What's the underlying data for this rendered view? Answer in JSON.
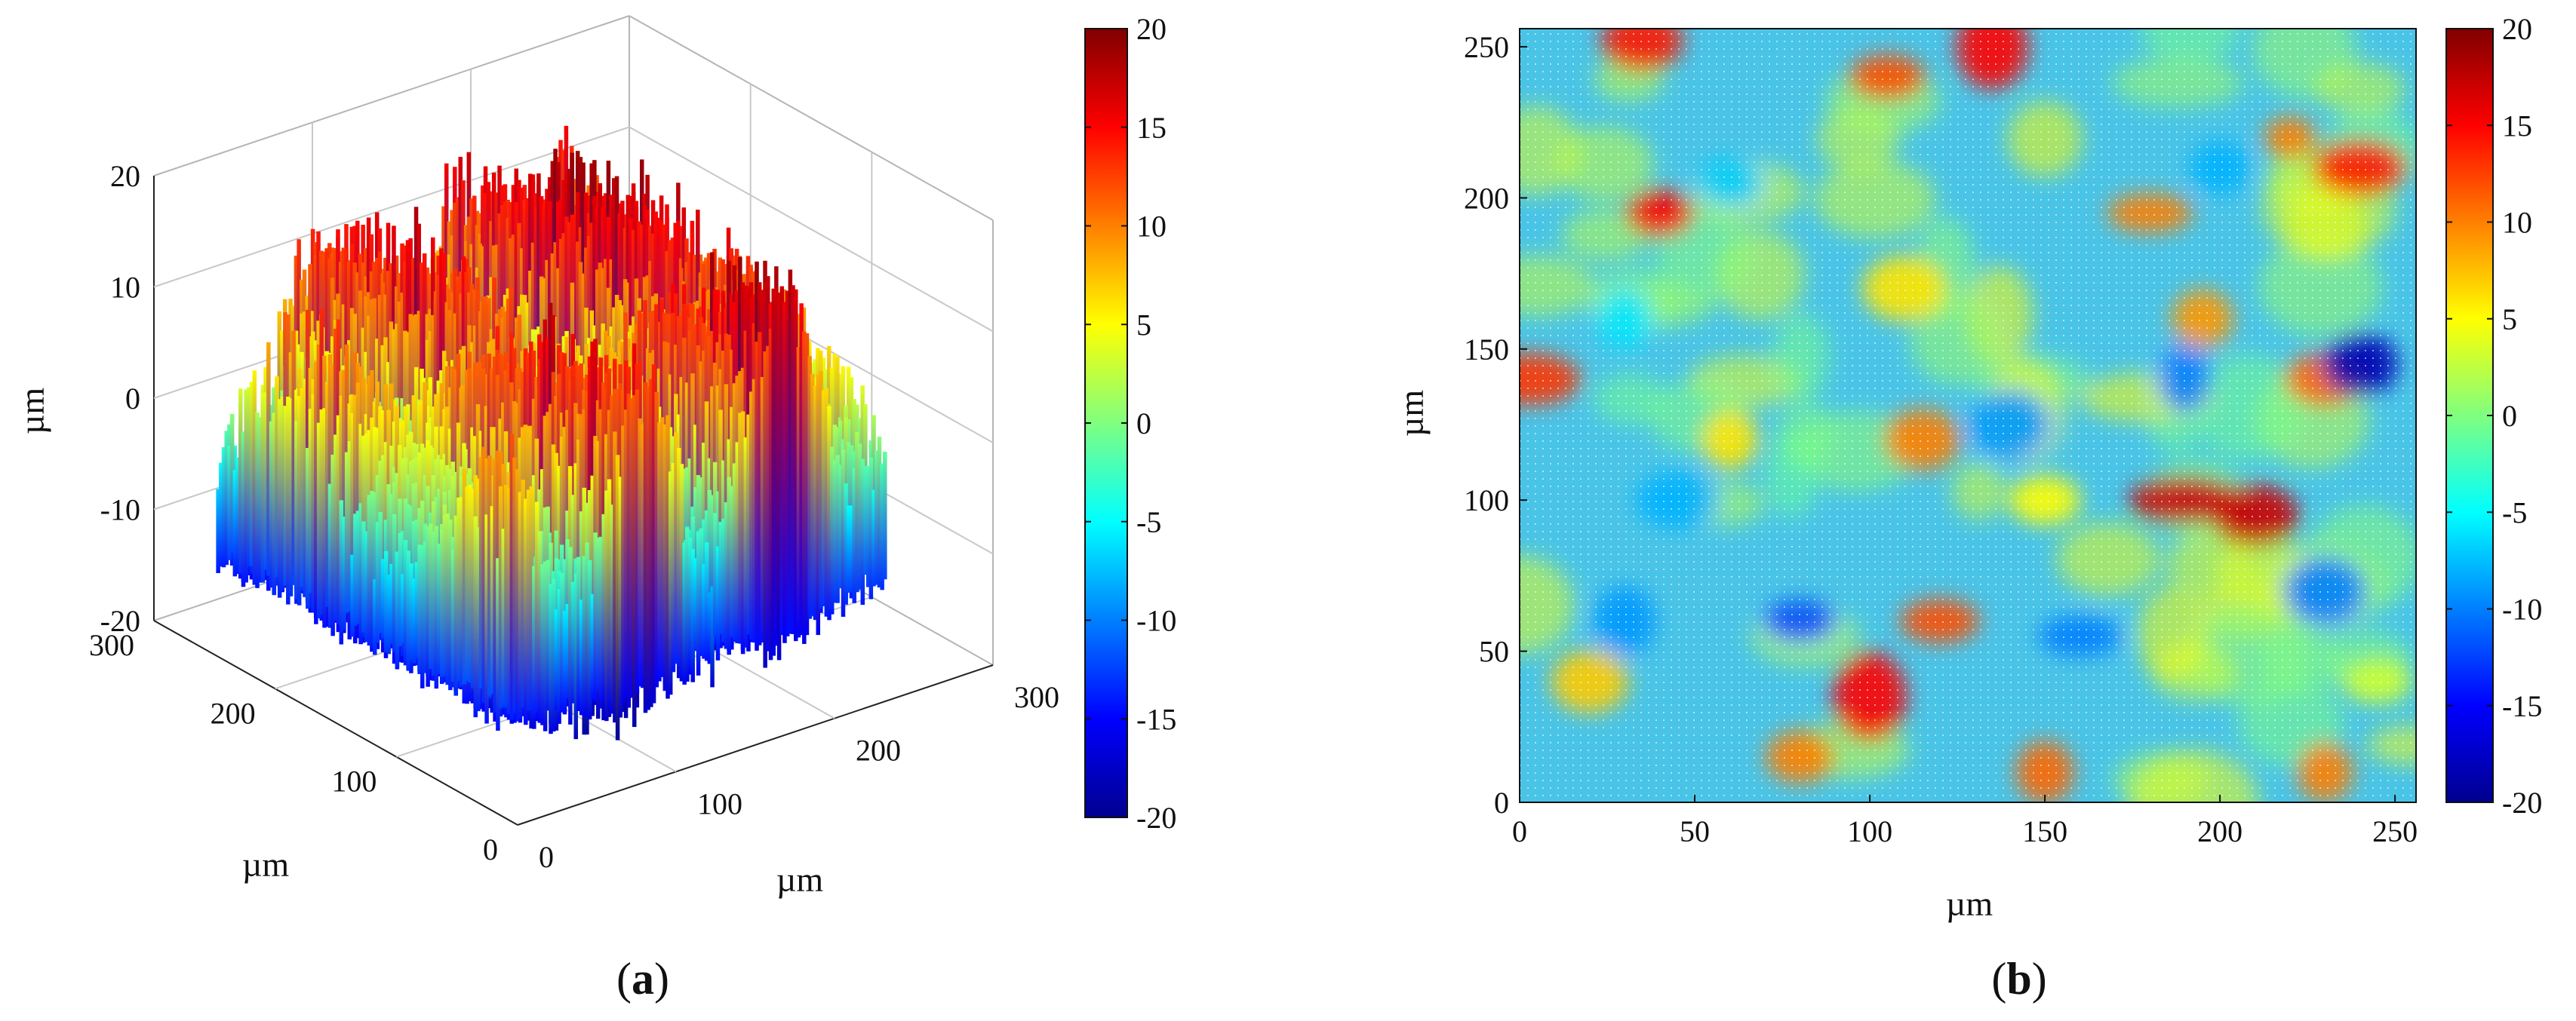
{
  "chart_data": [
    {
      "type": "surface3d",
      "panel_label": "a",
      "xlabel": "µm",
      "ylabel": "µm",
      "zlabel": "µm",
      "xlim": [
        0,
        300
      ],
      "ylim": [
        0,
        300
      ],
      "zlim": [
        -20,
        20
      ],
      "x_ticks": [
        "0",
        "100",
        "200",
        "300"
      ],
      "y_ticks": [
        "0",
        "100",
        "200",
        "300"
      ],
      "z_ticks": [
        "-20",
        "-10",
        "0",
        "10",
        "20"
      ],
      "grid": true,
      "colorbar": {
        "range": [
          -20,
          20
        ],
        "ticks": [
          "20",
          "15",
          "10",
          "5",
          "0",
          "-5",
          "-10",
          "-15",
          "-20"
        ],
        "colormap": "jet"
      },
      "height_profile_um": {
        "x_sample_um": [
          0,
          20,
          40,
          60,
          80,
          100,
          120,
          140,
          160,
          180,
          200,
          220,
          240,
          260
        ],
        "peak_height": [
          -7,
          10,
          4,
          12,
          13,
          12,
          2,
          12,
          17,
          16,
          12,
          5,
          0,
          -2
        ],
        "base_height": [
          -11,
          -12,
          -14,
          -13,
          -15,
          -14,
          -13,
          -12,
          -14,
          -13,
          -12,
          -11,
          -10,
          -9
        ],
        "min_spike": [
          -11,
          -13,
          -16,
          -18,
          -19,
          -17,
          -16,
          -18,
          -15,
          -14,
          -13,
          -12,
          -11,
          -10
        ]
      }
    },
    {
      "type": "heatmap",
      "panel_label": "b",
      "xlabel": "µm",
      "ylabel": "µm",
      "xlim": [
        0,
        256
      ],
      "ylim": [
        0,
        256
      ],
      "x_ticks": [
        0,
        50,
        100,
        150,
        200,
        250
      ],
      "y_ticks": [
        0,
        50,
        100,
        150,
        200,
        250
      ],
      "colorbar": {
        "range": [
          -20,
          20
        ],
        "ticks": [
          "20",
          "15",
          "10",
          "5",
          "0",
          "-5",
          "-10",
          "-15",
          "-20"
        ],
        "colormap": "jet"
      },
      "background_level": -4,
      "features": [
        {
          "x": 35,
          "y": 252,
          "level": 14
        },
        {
          "x": 105,
          "y": 240,
          "level": 12
        },
        {
          "x": 135,
          "y": 250,
          "level": 15
        },
        {
          "x": 240,
          "y": 210,
          "level": 14
        },
        {
          "x": 220,
          "y": 220,
          "level": 10
        },
        {
          "x": 40,
          "y": 195,
          "level": 15
        },
        {
          "x": 180,
          "y": 195,
          "level": 10
        },
        {
          "x": 195,
          "y": 160,
          "level": 9
        },
        {
          "x": 110,
          "y": 170,
          "level": 6
        },
        {
          "x": 3,
          "y": 140,
          "level": 13
        },
        {
          "x": 230,
          "y": 140,
          "level": 11
        },
        {
          "x": 190,
          "y": 100,
          "level": 17
        },
        {
          "x": 210,
          "y": 95,
          "level": 17
        },
        {
          "x": 115,
          "y": 120,
          "level": 10
        },
        {
          "x": 120,
          "y": 60,
          "level": 12
        },
        {
          "x": 100,
          "y": 35,
          "level": 15
        },
        {
          "x": 80,
          "y": 15,
          "level": 10
        },
        {
          "x": 150,
          "y": 10,
          "level": 11
        },
        {
          "x": 230,
          "y": 10,
          "level": 10
        },
        {
          "x": 60,
          "y": 120,
          "level": 6
        },
        {
          "x": 20,
          "y": 40,
          "level": 7
        },
        {
          "x": 245,
          "y": 40,
          "level": 3
        },
        {
          "x": 150,
          "y": 100,
          "level": 5
        },
        {
          "x": 240,
          "y": 145,
          "level": -18
        },
        {
          "x": 80,
          "y": 60,
          "level": -12
        },
        {
          "x": 160,
          "y": 55,
          "level": -10
        },
        {
          "x": 230,
          "y": 70,
          "level": -10
        },
        {
          "x": 140,
          "y": 125,
          "level": -9
        },
        {
          "x": 200,
          "y": 210,
          "level": -8
        },
        {
          "x": 60,
          "y": 205,
          "level": -7
        },
        {
          "x": 45,
          "y": 100,
          "level": -8
        },
        {
          "x": 30,
          "y": 160,
          "level": -6
        },
        {
          "x": 190,
          "y": 140,
          "level": -10
        },
        {
          "x": 30,
          "y": 60,
          "level": -9
        }
      ]
    }
  ],
  "captions": {
    "a": "a",
    "b": "b"
  }
}
